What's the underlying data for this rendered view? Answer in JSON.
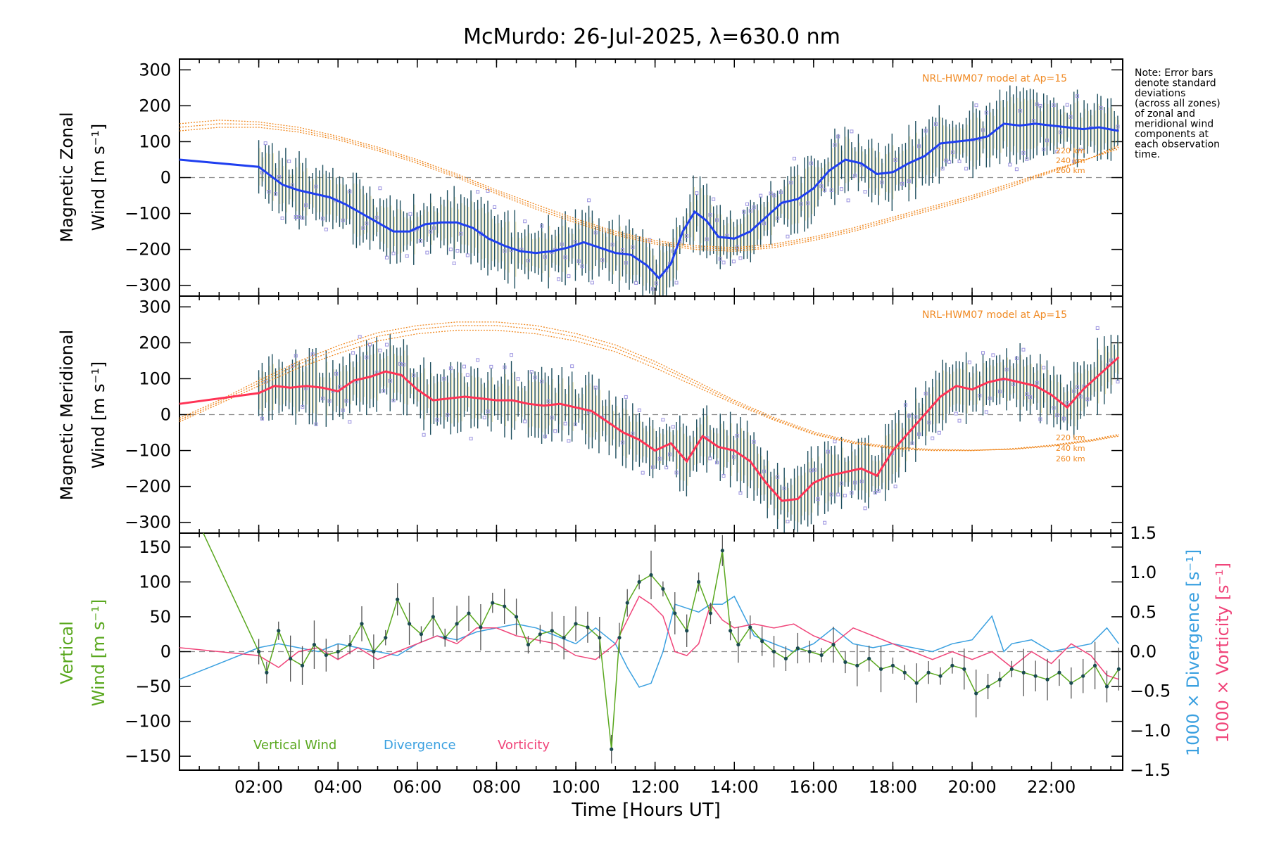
{
  "chart_data": [
    {
      "type": "line",
      "title": "McMurdo: 26-Jul-2025, λ=630.0 nm",
      "ylabel_lines": [
        "Magnetic Zonal",
        "Wind [m s⁻¹]"
      ],
      "ylim": [
        -330,
        330
      ],
      "yticks": [
        -300,
        -200,
        -100,
        0,
        100,
        200,
        300
      ],
      "model_label": "NRL-HWM07 model at Ap=15",
      "note": [
        "Note: Error bars",
        "denote standard",
        "deviations",
        "(across all zones)",
        "of zonal and",
        "meridional wind",
        "components at",
        "each observation",
        "time."
      ],
      "alt_labels": [
        "220 km",
        "240 km",
        "260 km"
      ],
      "series": [
        {
          "name": "Zonal wind (smoothed)",
          "color": "#1f3ff0",
          "x": [
            0,
            2.0,
            2.3,
            2.6,
            3.0,
            3.4,
            3.8,
            4.2,
            4.6,
            5.0,
            5.4,
            5.8,
            6.2,
            6.6,
            7.0,
            7.4,
            7.8,
            8.2,
            8.6,
            9.0,
            9.4,
            9.8,
            10.2,
            10.6,
            11.0,
            11.4,
            11.8,
            12.1,
            12.4,
            12.7,
            13.0,
            13.3,
            13.6,
            14.0,
            14.4,
            14.8,
            15.2,
            15.6,
            16.0,
            16.4,
            16.8,
            17.2,
            17.6,
            18.0,
            18.4,
            18.8,
            19.2,
            19.6,
            20.0,
            20.4,
            20.8,
            21.2,
            21.6,
            22.0,
            22.4,
            22.8,
            23.2,
            23.7
          ],
          "y": [
            50,
            30,
            5,
            -20,
            -35,
            -45,
            -55,
            -75,
            -100,
            -125,
            -150,
            -150,
            -130,
            -125,
            -125,
            -140,
            -170,
            -190,
            -205,
            -210,
            -205,
            -195,
            -180,
            -195,
            -210,
            -215,
            -245,
            -280,
            -240,
            -150,
            -95,
            -120,
            -165,
            -170,
            -150,
            -110,
            -70,
            -60,
            -30,
            20,
            50,
            40,
            10,
            15,
            40,
            60,
            95,
            100,
            105,
            115,
            150,
            145,
            150,
            145,
            140,
            135,
            140,
            130
          ]
        },
        {
          "name": "HWM07 220 km",
          "color": "#f08a24",
          "dashed": true,
          "x": [
            0,
            1,
            2,
            3,
            4,
            5,
            6,
            7,
            8,
            9,
            10,
            11,
            12,
            13,
            14,
            15,
            16,
            17,
            18,
            19,
            20,
            21,
            22,
            23,
            23.7
          ],
          "y": [
            150,
            160,
            155,
            140,
            115,
            85,
            50,
            10,
            -35,
            -75,
            -115,
            -150,
            -175,
            -190,
            -195,
            -185,
            -165,
            -140,
            -110,
            -80,
            -50,
            -15,
            20,
            55,
            80
          ]
        },
        {
          "name": "HWM07 240 km",
          "color": "#f08a24",
          "dashed": true,
          "x": [
            0,
            1,
            2,
            3,
            4,
            5,
            6,
            7,
            8,
            9,
            10,
            11,
            12,
            13,
            14,
            15,
            16,
            17,
            18,
            19,
            20,
            21,
            22,
            23,
            23.7
          ],
          "y": [
            140,
            150,
            148,
            133,
            110,
            80,
            45,
            5,
            -40,
            -82,
            -120,
            -155,
            -180,
            -195,
            -200,
            -190,
            -170,
            -145,
            -115,
            -85,
            -55,
            -20,
            18,
            55,
            85
          ]
        },
        {
          "name": "HWM07 260 km",
          "color": "#f08a24",
          "dashed": true,
          "x": [
            0,
            1,
            2,
            3,
            4,
            5,
            6,
            7,
            8,
            9,
            10,
            11,
            12,
            13,
            14,
            15,
            16,
            17,
            18,
            19,
            20,
            21,
            22,
            23,
            23.7
          ],
          "y": [
            130,
            140,
            140,
            127,
            105,
            75,
            40,
            0,
            -45,
            -88,
            -126,
            -160,
            -185,
            -200,
            -205,
            -195,
            -175,
            -150,
            -120,
            -90,
            -60,
            -25,
            15,
            55,
            90
          ]
        }
      ]
    },
    {
      "type": "line",
      "ylabel_lines": [
        "Magnetic Meridional",
        "Wind [m s⁻¹]"
      ],
      "ylim": [
        -330,
        330
      ],
      "yticks": [
        -300,
        -200,
        -100,
        0,
        100,
        200,
        300
      ],
      "model_label": "NRL-HWM07 model at Ap=15",
      "alt_labels": [
        "220 km",
        "240 km",
        "260 km"
      ],
      "series": [
        {
          "name": "Meridional wind (smoothed)",
          "color": "#ff3355",
          "x": [
            0,
            2.0,
            2.4,
            2.8,
            3.2,
            3.6,
            4.0,
            4.4,
            4.8,
            5.2,
            5.6,
            6.0,
            6.4,
            6.8,
            7.2,
            7.6,
            8.0,
            8.4,
            8.8,
            9.2,
            9.6,
            10.0,
            10.4,
            10.8,
            11.2,
            11.6,
            12.0,
            12.4,
            12.8,
            13.2,
            13.6,
            14.0,
            14.4,
            14.8,
            15.2,
            15.6,
            16.0,
            16.4,
            16.8,
            17.2,
            17.6,
            18.0,
            18.4,
            18.8,
            19.2,
            19.6,
            20.0,
            20.4,
            20.8,
            21.2,
            21.6,
            22.0,
            22.4,
            22.8,
            23.2,
            23.7
          ],
          "y": [
            30,
            60,
            80,
            75,
            80,
            75,
            65,
            95,
            105,
            120,
            110,
            70,
            40,
            45,
            50,
            45,
            40,
            40,
            30,
            25,
            30,
            20,
            10,
            -20,
            -50,
            -70,
            -100,
            -80,
            -130,
            -60,
            -90,
            -100,
            -130,
            -190,
            -240,
            -235,
            -190,
            -170,
            -160,
            -150,
            -170,
            -100,
            -50,
            0,
            50,
            80,
            70,
            90,
            100,
            90,
            80,
            55,
            20,
            70,
            110,
            160
          ]
        },
        {
          "name": "HWM07 220 km",
          "color": "#f08a24",
          "dashed": true,
          "x": [
            0,
            1,
            2,
            3,
            4,
            5,
            6,
            7,
            8,
            9,
            10,
            11,
            12,
            13,
            14,
            15,
            16,
            17,
            18,
            19,
            20,
            21,
            22,
            23,
            23.7
          ],
          "y": [
            -20,
            30,
            80,
            130,
            170,
            205,
            225,
            235,
            235,
            225,
            205,
            175,
            130,
            80,
            30,
            -15,
            -55,
            -80,
            -95,
            -100,
            -100,
            -95,
            -85,
            -70,
            -55
          ]
        },
        {
          "name": "HWM07 240 km",
          "color": "#f08a24",
          "dashed": true,
          "x": [
            0,
            1,
            2,
            3,
            4,
            5,
            6,
            7,
            8,
            9,
            10,
            11,
            12,
            13,
            14,
            15,
            16,
            17,
            18,
            19,
            20,
            21,
            22,
            23,
            23.7
          ],
          "y": [
            -15,
            35,
            88,
            140,
            182,
            218,
            238,
            248,
            248,
            238,
            216,
            185,
            140,
            88,
            35,
            -12,
            -52,
            -78,
            -93,
            -99,
            -100,
            -96,
            -86,
            -72,
            -58
          ]
        },
        {
          "name": "HWM07 260 km",
          "color": "#f08a24",
          "dashed": true,
          "x": [
            0,
            1,
            2,
            3,
            4,
            5,
            6,
            7,
            8,
            9,
            10,
            11,
            12,
            13,
            14,
            15,
            16,
            17,
            18,
            19,
            20,
            21,
            22,
            23,
            23.7
          ],
          "y": [
            -10,
            40,
            95,
            148,
            192,
            228,
            248,
            258,
            258,
            248,
            226,
            194,
            148,
            95,
            40,
            -8,
            -48,
            -75,
            -90,
            -97,
            -99,
            -97,
            -88,
            -74,
            -60
          ]
        }
      ]
    },
    {
      "type": "line",
      "xlabel": "Time [Hours UT]",
      "xlim": [
        0,
        23.8
      ],
      "xticks": [
        2,
        4,
        6,
        8,
        10,
        12,
        14,
        16,
        18,
        20,
        22
      ],
      "xtick_labels": [
        "02:00",
        "04:00",
        "06:00",
        "08:00",
        "10:00",
        "12:00",
        "14:00",
        "16:00",
        "18:00",
        "20:00",
        "22:00"
      ],
      "ylabel_lines": [
        "Vertical",
        "Wind [m s⁻¹]"
      ],
      "ylim": [
        -170,
        170
      ],
      "yticks": [
        -150,
        -100,
        -50,
        0,
        50,
        100,
        150
      ],
      "y2_label_lines": [
        "1000 × Divergence [s⁻¹]",
        "1000 × Vorticity [s⁻¹]"
      ],
      "y2lim": [
        -1.5,
        1.5
      ],
      "y2ticks": [
        "1.5",
        "1.0",
        "0.5",
        "0.0",
        "-0.5",
        "-1.0",
        "-1.5"
      ],
      "legend": [
        {
          "label": "Vertical Wind",
          "color": "#5aa81f"
        },
        {
          "label": "Divergence",
          "color": "#3aa0e0"
        },
        {
          "label": "Vorticity",
          "color": "#f0457a"
        }
      ],
      "series": [
        {
          "name": "Vertical Wind",
          "color": "#5aa81f",
          "x": [
            0.6,
            2.0,
            2.2,
            2.5,
            2.8,
            3.1,
            3.4,
            3.7,
            4.0,
            4.3,
            4.6,
            4.9,
            5.2,
            5.5,
            5.8,
            6.1,
            6.4,
            6.7,
            7.0,
            7.3,
            7.6,
            7.9,
            8.2,
            8.5,
            8.8,
            9.1,
            9.4,
            9.7,
            10.0,
            10.3,
            10.6,
            10.9,
            11.1,
            11.3,
            11.6,
            11.9,
            12.2,
            12.5,
            12.8,
            13.1,
            13.4,
            13.7,
            13.9,
            14.1,
            14.4,
            14.7,
            15.0,
            15.3,
            15.6,
            15.9,
            16.2,
            16.5,
            16.8,
            17.1,
            17.4,
            17.7,
            18.0,
            18.3,
            18.6,
            18.9,
            19.2,
            19.5,
            19.8,
            20.1,
            20.4,
            20.7,
            21.0,
            21.3,
            21.6,
            21.9,
            22.2,
            22.5,
            22.8,
            23.1,
            23.4,
            23.7
          ],
          "y": [
            170,
            0,
            -30,
            30,
            -10,
            -20,
            10,
            -5,
            0,
            10,
            40,
            0,
            20,
            75,
            40,
            25,
            50,
            20,
            40,
            55,
            35,
            70,
            65,
            50,
            10,
            25,
            30,
            20,
            40,
            35,
            20,
            -140,
            20,
            70,
            100,
            110,
            90,
            55,
            30,
            100,
            55,
            145,
            30,
            10,
            35,
            15,
            0,
            -10,
            5,
            0,
            -5,
            10,
            -15,
            -20,
            -10,
            -25,
            -20,
            -30,
            -45,
            -30,
            -35,
            -20,
            -25,
            -60,
            -50,
            -40,
            -25,
            -30,
            -35,
            -40,
            -30,
            -45,
            -35,
            -20,
            -50,
            -25
          ]
        },
        {
          "name": "Divergence",
          "color": "#3aa0e0",
          "x": [
            0,
            1.0,
            2.0,
            2.5,
            3.0,
            3.5,
            4.0,
            4.5,
            5.0,
            5.5,
            6.0,
            6.5,
            7.0,
            7.5,
            8.0,
            8.5,
            9.0,
            9.5,
            10.0,
            10.5,
            11.0,
            11.3,
            11.6,
            11.9,
            12.2,
            12.5,
            12.8,
            13.1,
            13.4,
            13.7,
            14.0,
            14.5,
            15.0,
            15.5,
            16.0,
            16.5,
            17.0,
            17.5,
            18.0,
            18.5,
            19.0,
            19.5,
            20.0,
            20.5,
            20.8,
            21.0,
            21.5,
            22.0,
            22.5,
            23.0,
            23.4,
            23.7
          ],
          "y": [
            -0.35,
            -0.15,
            0.05,
            0.1,
            0.05,
            0.0,
            0.1,
            0.05,
            0.0,
            -0.05,
            0.1,
            0.2,
            0.15,
            0.25,
            0.3,
            0.35,
            0.3,
            0.2,
            0.1,
            0.3,
            0.1,
            -0.2,
            -0.45,
            -0.4,
            0.0,
            0.6,
            0.55,
            0.5,
            0.6,
            0.6,
            0.7,
            0.2,
            0.1,
            0.0,
            0.1,
            0.3,
            0.1,
            0.05,
            0.1,
            0.05,
            0.0,
            0.1,
            0.15,
            0.45,
            0.0,
            0.1,
            0.15,
            0.0,
            0.05,
            0.1,
            0.3,
            0.1
          ]
        },
        {
          "name": "Vorticity",
          "color": "#f0457a",
          "x": [
            0,
            1.0,
            2.0,
            2.5,
            3.0,
            3.5,
            4.0,
            4.5,
            5.0,
            5.5,
            6.0,
            6.5,
            7.0,
            7.5,
            8.0,
            8.5,
            9.0,
            9.5,
            10.0,
            10.5,
            11.0,
            11.3,
            11.6,
            11.9,
            12.2,
            12.5,
            12.8,
            13.1,
            13.4,
            13.7,
            14.0,
            14.5,
            15.0,
            15.5,
            16.0,
            16.5,
            17.0,
            17.5,
            18.0,
            18.5,
            19.0,
            19.5,
            20.0,
            20.5,
            21.0,
            21.5,
            22.0,
            22.5,
            23.0,
            23.4,
            23.7
          ],
          "y": [
            0.05,
            0.0,
            -0.05,
            -0.2,
            0.0,
            0.05,
            -0.1,
            0.05,
            -0.1,
            0.0,
            0.1,
            0.2,
            0.1,
            0.3,
            0.3,
            0.2,
            0.15,
            0.1,
            -0.05,
            -0.1,
            0.1,
            0.4,
            0.7,
            0.6,
            0.45,
            0.0,
            -0.05,
            0.1,
            0.6,
            0.4,
            0.3,
            0.35,
            0.3,
            0.35,
            0.2,
            0.1,
            0.3,
            0.2,
            0.1,
            0.0,
            -0.1,
            0.0,
            -0.1,
            0.0,
            -0.2,
            0.0,
            -0.15,
            0.1,
            -0.05,
            -0.3,
            -0.35
          ]
        }
      ]
    }
  ]
}
